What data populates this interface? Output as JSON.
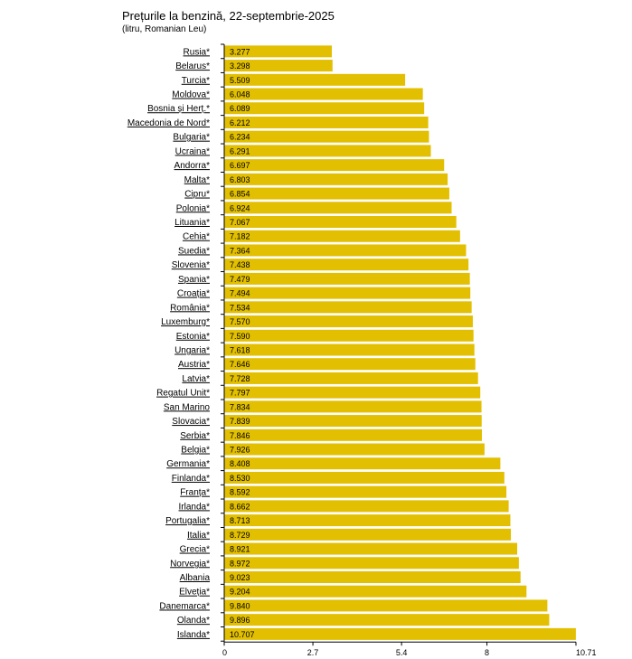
{
  "title": "Prețurile la benzină, 22-septembrie-2025",
  "subtitle": "(litru, Romanian Leu)",
  "colors": {
    "bar": "#e2bf00",
    "axis": "#000000"
  },
  "chart_data": {
    "type": "bar",
    "orientation": "horizontal",
    "title": "Prețurile la benzină, 22-septembrie-2025",
    "subtitle": "(litru, Romanian Leu)",
    "xlabel": "",
    "ylabel": "",
    "xlim": [
      0,
      10.71
    ],
    "xticks": [
      "0",
      "2.7",
      "5.4",
      "8",
      "10.71"
    ],
    "xtick_values": [
      0,
      2.7,
      5.4,
      8,
      10.71
    ],
    "grid": false,
    "categories": [
      "Rusia*",
      "Belarus*",
      "Turcia*",
      "Moldova*",
      "Bosnia și Herț.*",
      "Macedonia de Nord*",
      "Bulgaria*",
      "Ucraina*",
      "Andorra*",
      "Malta*",
      "Cipru*",
      "Polonia*",
      "Lituania*",
      "Cehia*",
      "Suedia*",
      "Slovenia*",
      "Spania*",
      "Croația*",
      "România*",
      "Luxemburg*",
      "Estonia*",
      "Ungaria*",
      "Austria*",
      "Latvia*",
      "Regatul Unit*",
      "San Marino",
      "Slovacia*",
      "Serbia*",
      "Belgia*",
      "Germania*",
      "Finlanda*",
      "Franța*",
      "Irlanda*",
      "Portugalia*",
      "Italia*",
      "Grecia*",
      "Norvegia*",
      "Albania",
      "Elveția*",
      "Danemarca*",
      "Olanda*",
      "Islanda*"
    ],
    "values": [
      3.277,
      3.298,
      5.509,
      6.048,
      6.089,
      6.212,
      6.234,
      6.291,
      6.697,
      6.803,
      6.854,
      6.924,
      7.067,
      7.182,
      7.364,
      7.438,
      7.479,
      7.494,
      7.534,
      7.57,
      7.59,
      7.618,
      7.646,
      7.728,
      7.797,
      7.834,
      7.839,
      7.846,
      7.926,
      8.408,
      8.53,
      8.592,
      8.662,
      8.713,
      8.729,
      8.921,
      8.972,
      9.023,
      9.204,
      9.84,
      9.896,
      10.707
    ],
    "value_labels": [
      "3.277",
      "3.298",
      "5.509",
      "6.048",
      "6.089",
      "6.212",
      "6.234",
      "6.291",
      "6.697",
      "6.803",
      "6.854",
      "6.924",
      "7.067",
      "7.182",
      "7.364",
      "7.438",
      "7.479",
      "7.494",
      "7.534",
      "7.570",
      "7.590",
      "7.618",
      "7.646",
      "7.728",
      "7.797",
      "7.834",
      "7.839",
      "7.846",
      "7.926",
      "8.408",
      "8.530",
      "8.592",
      "8.662",
      "8.713",
      "8.729",
      "8.921",
      "8.972",
      "9.023",
      "9.204",
      "9.840",
      "9.896",
      "10.707"
    ]
  }
}
